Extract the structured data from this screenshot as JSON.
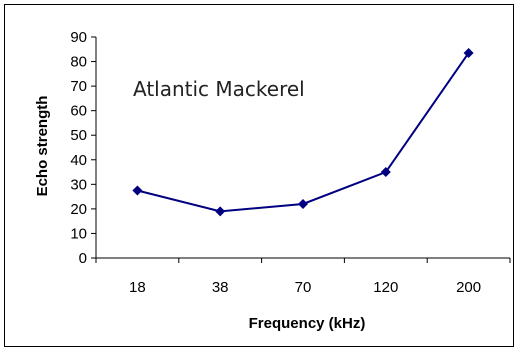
{
  "chart_data": {
    "type": "line",
    "title": "",
    "xlabel": "Frequency (kHz)",
    "ylabel": "Echo strength",
    "categories": [
      "18",
      "38",
      "70",
      "120",
      "200"
    ],
    "series": [
      {
        "values": [
          27.5,
          19,
          22,
          35,
          83.5
        ]
      }
    ],
    "ylim": [
      0,
      90
    ],
    "yticks": [
      0,
      10,
      20,
      30,
      40,
      50,
      60,
      70,
      80,
      90
    ],
    "annotation": "Atlantic Mackerel",
    "grid": false,
    "legend": "none",
    "line_color": "#000080",
    "marker": "diamond"
  }
}
